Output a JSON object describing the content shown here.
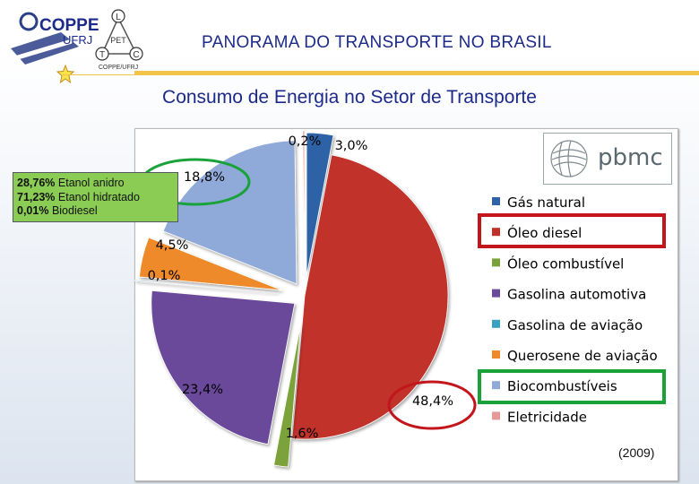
{
  "header": {
    "title": "PANORAMA DO TRANSPORTE NO BRASIL",
    "logo_text": "COPPE",
    "logo_sub": "UFRJ",
    "logo_pet": "PET",
    "logo_letters": [
      "L",
      "T",
      "C"
    ],
    "logo_caption": "COPPE/UFRJ"
  },
  "slide": {
    "title": "Consumo de Energia no Setor de Transporte"
  },
  "ethanol_note": {
    "rows": [
      {
        "value": "28,76%",
        "label": "Etanol anidro"
      },
      {
        "value": "71,23%",
        "label": "Etanol hidratado"
      },
      {
        "value": "0,01%",
        "label": "Biodiesel"
      }
    ]
  },
  "pbmc_logo": {
    "text": "pbmc"
  },
  "year": "(2009)",
  "chart_data": {
    "type": "pie",
    "title": "",
    "slices": [
      {
        "label": "Gás natural",
        "value": 3.0,
        "display": "3,0%",
        "color": "#2f62a6"
      },
      {
        "label": "Óleo diesel",
        "value": 48.4,
        "display": "48,4%",
        "color": "#c0302b"
      },
      {
        "label": "Óleo combustível",
        "value": 1.6,
        "display": "1,6%",
        "color": "#7ba23a"
      },
      {
        "label": "Gasolina automotiva",
        "value": 23.4,
        "display": "23,4%",
        "color": "#6a4a9a"
      },
      {
        "label": "Gasolina de aviação",
        "value": 0.1,
        "display": "0,1%",
        "color": "#3aa0c0"
      },
      {
        "label": "Querosene de aviação",
        "value": 4.5,
        "display": "4,5%",
        "color": "#ee8a2a"
      },
      {
        "label": "Biocombustíveis",
        "value": 18.8,
        "display": "18,8%",
        "color": "#8faad8"
      },
      {
        "label": "Eletricidade",
        "value": 0.2,
        "display": "0,2%",
        "color": "#e59a96"
      }
    ],
    "legend_position": "right",
    "highlighted": [
      "Óleo diesel",
      "Biocombustíveis"
    ]
  }
}
